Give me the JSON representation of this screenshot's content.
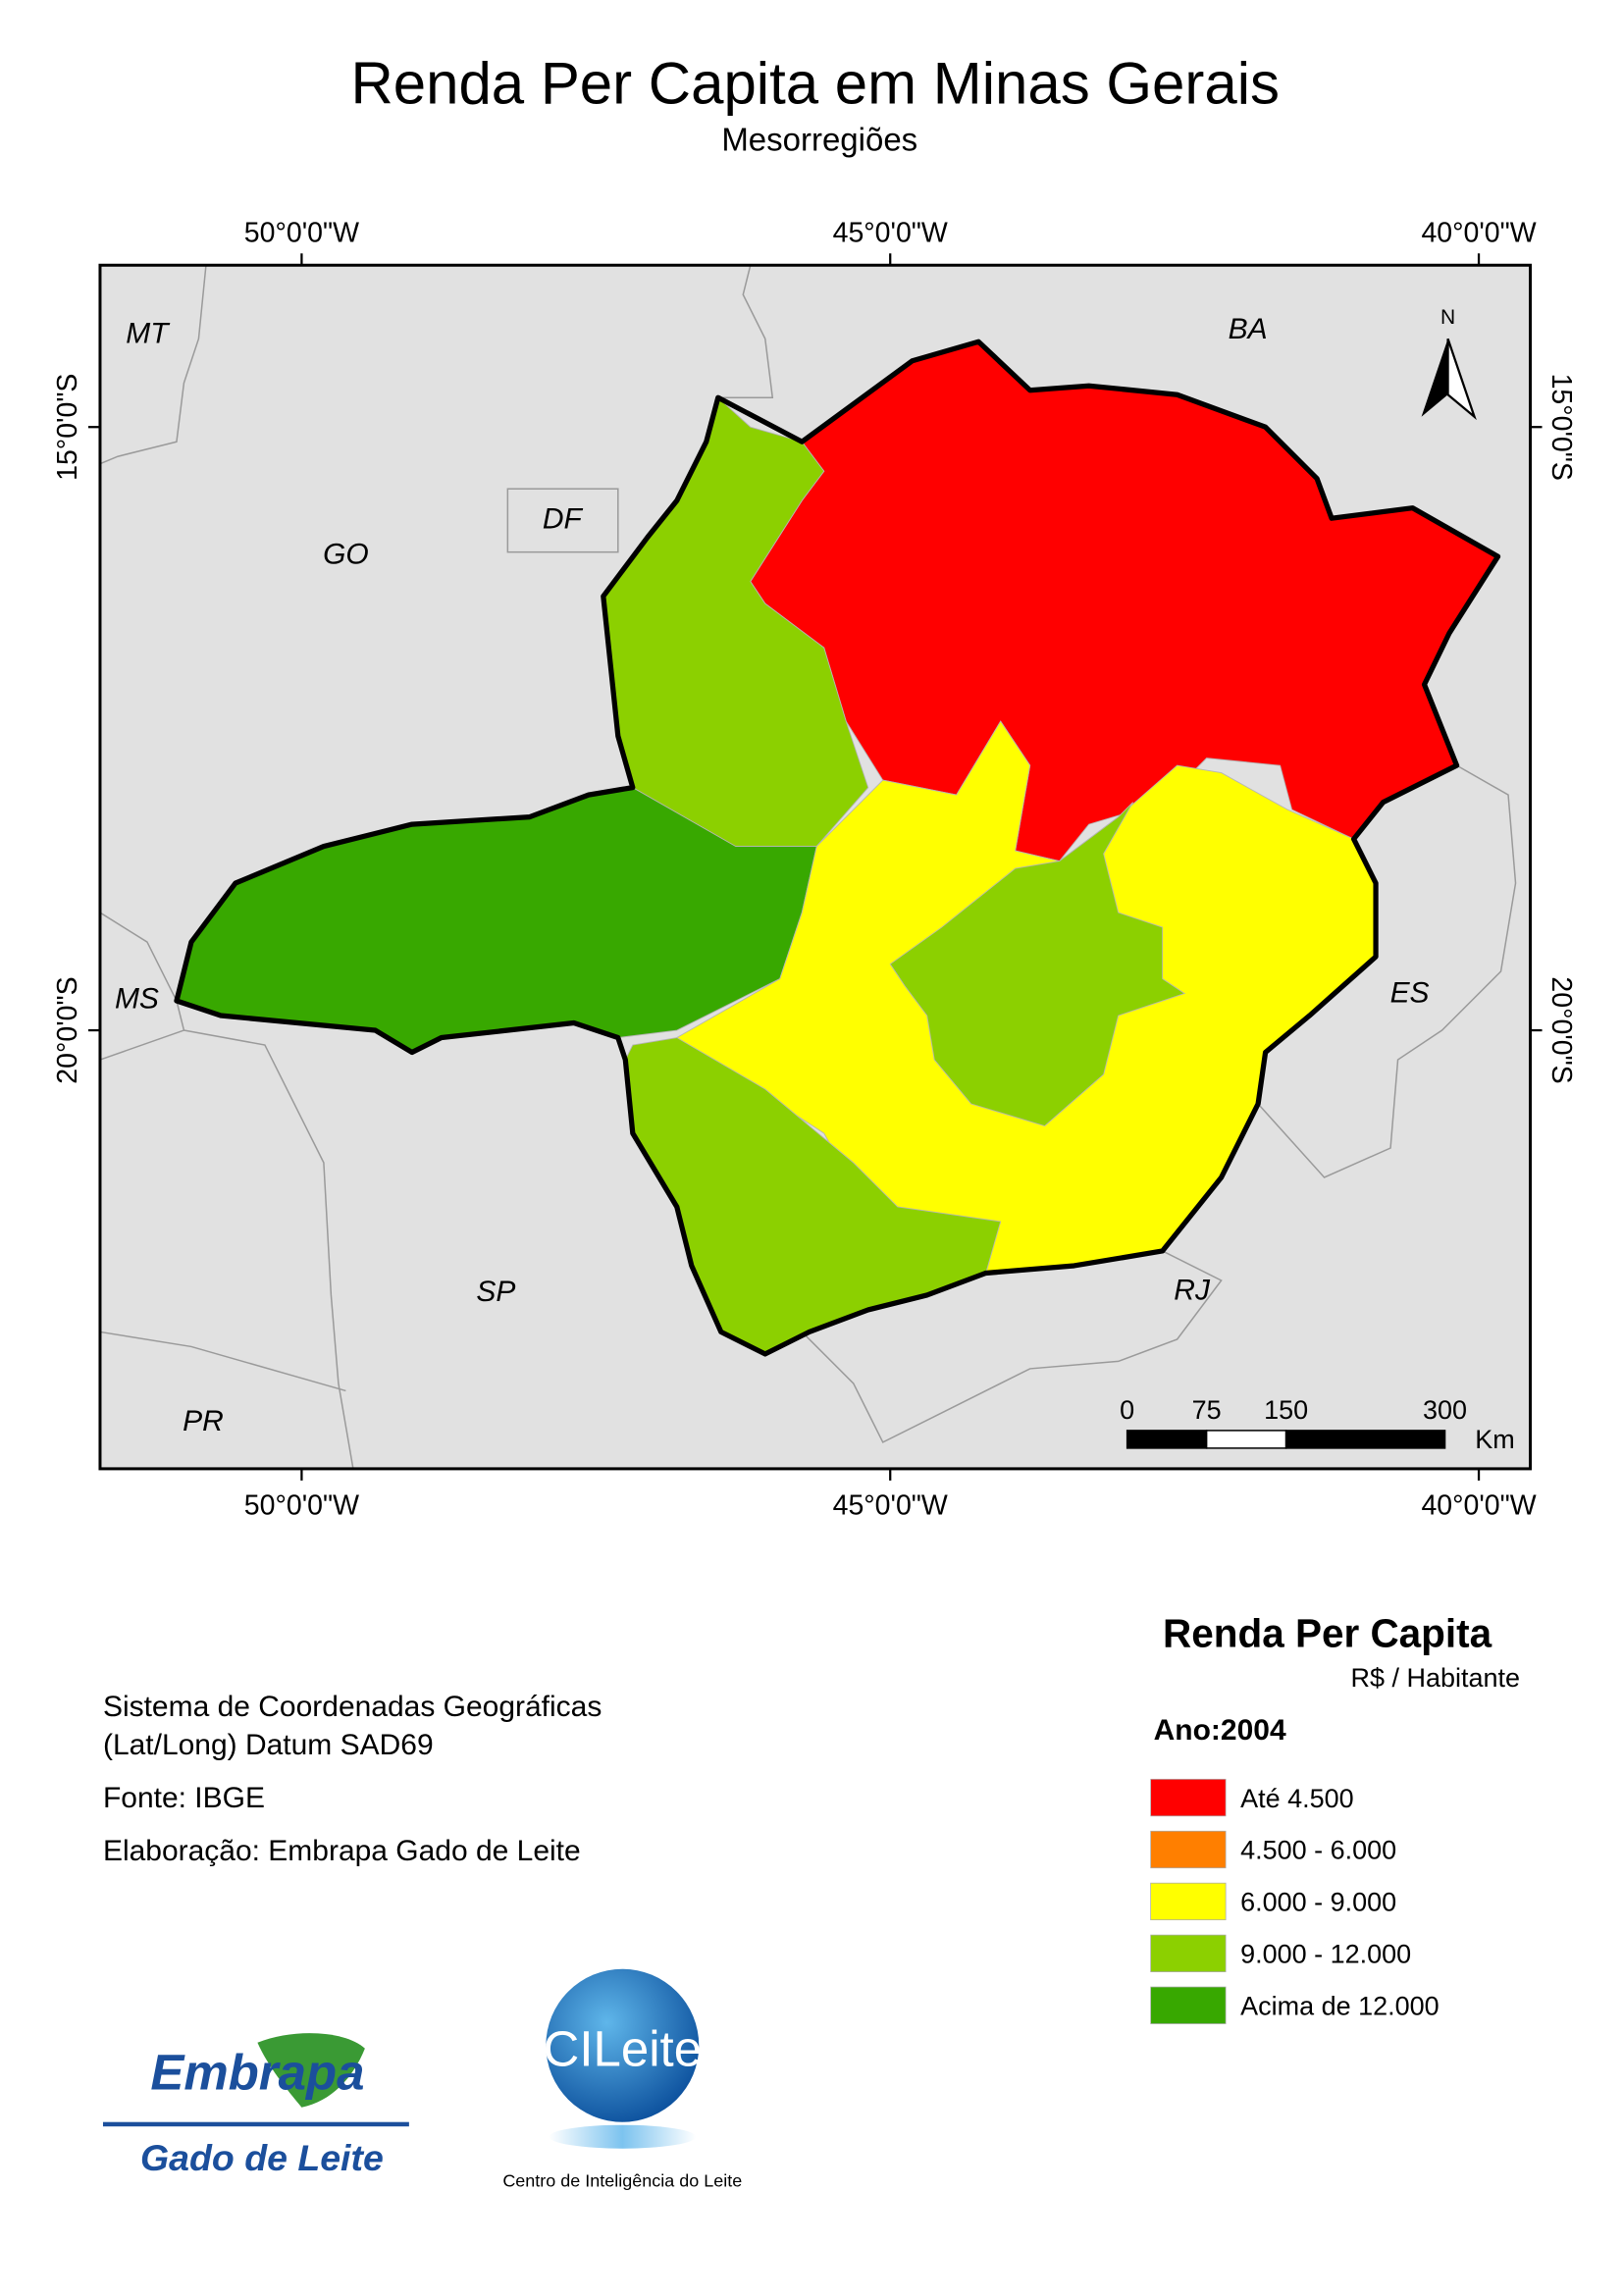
{
  "title": "Renda Per Capita em Minas Gerais",
  "subtitle": "Mesorregiões",
  "graticule": {
    "longitudes": [
      "50°0'0\"W",
      "45°0'0\"W",
      "40°0'0\"W"
    ],
    "latitudes": [
      "15°0'0\"S",
      "20°0'0\"S"
    ]
  },
  "state_labels": [
    "MT",
    "BA",
    "GO",
    "DF",
    "MS",
    "ES",
    "SP",
    "RJ",
    "PR"
  ],
  "north": "N",
  "scale_bar": {
    "ticks": [
      0,
      75,
      150,
      300
    ],
    "unit": "Km"
  },
  "legend": {
    "title": "Renda Per Capita",
    "unit": "R$ / Habitante",
    "year": "Ano:2004",
    "items": [
      {
        "label": "Até 4.500",
        "color": "#ff0000"
      },
      {
        "label": "4.500 - 6.000",
        "color": "#ff7f00"
      },
      {
        "label": "6.000 - 9.000",
        "color": "#ffff00"
      },
      {
        "label": "9.000 - 12.000",
        "color": "#8cd000"
      },
      {
        "label": "Acima de 12.000",
        "color": "#38a800"
      }
    ]
  },
  "notes": [
    "Sistema de Coordenadas Geográficas",
    "(Lat/Long) Datum SAD69",
    "Fonte: IBGE",
    "Elaboração: Embrapa Gado de Leite"
  ],
  "logos": {
    "embrapa": "Embrapa",
    "embrapa_unit": "Gado de Leite",
    "cileite": "CILeite",
    "cileite_caption": "Centro de Inteligência do Leite"
  }
}
